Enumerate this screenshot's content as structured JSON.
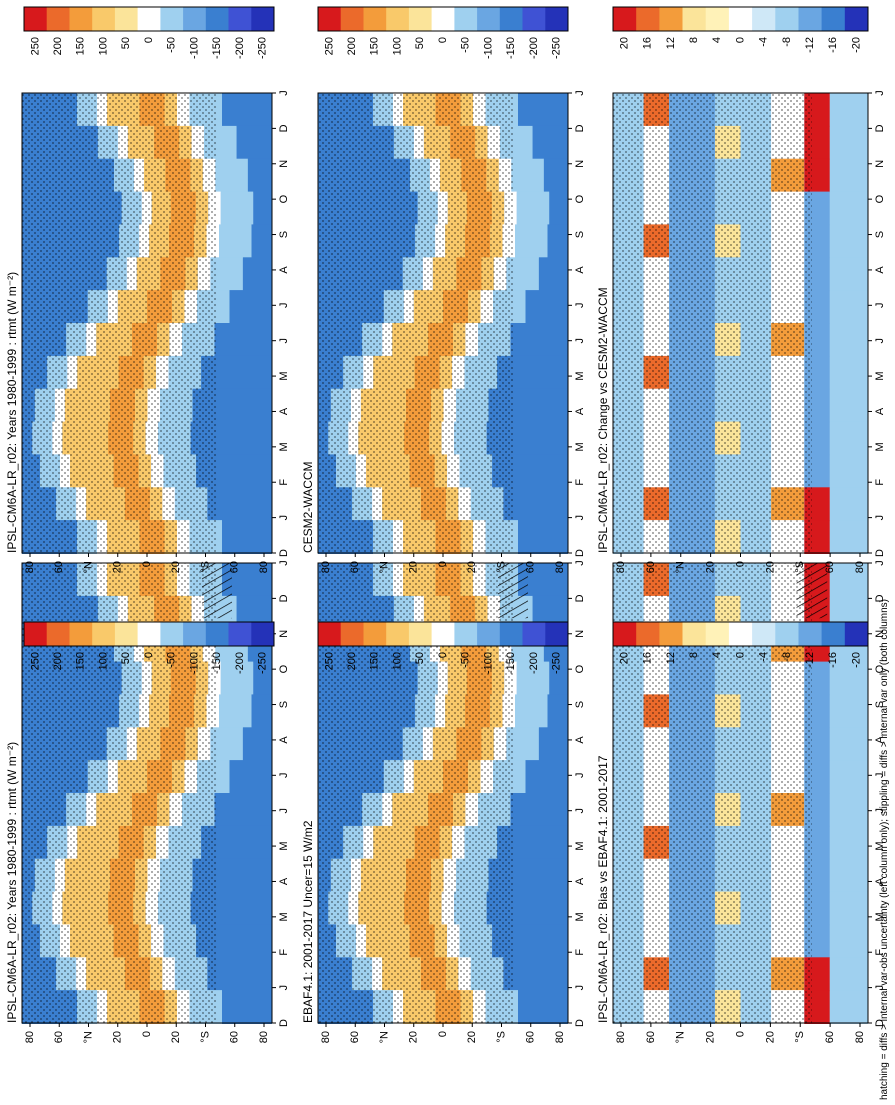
{
  "figure": {
    "footnote": "hatching = diffs > internal var-obs uncertainty (left column only); stippling = diffs > internal var only (both columns)",
    "month_ticks": [
      "D",
      "J",
      "F",
      "M",
      "A",
      "M",
      "J",
      "J",
      "A",
      "S",
      "O",
      "N",
      "D",
      "J"
    ],
    "lat_ticks": [
      "80",
      "60",
      "°N",
      "20",
      "0",
      "20",
      "°S",
      "60",
      "80"
    ]
  },
  "palette": {
    "red": "#d7191c",
    "orange": "#f39c3b",
    "yellow": "#fbe49a",
    "white": "#ffffff",
    "lightblue": "#9fd0ef",
    "blue": "#3a7fd0",
    "darkblue": "#2432b8"
  },
  "chart_data": [
    {
      "type": "heatmap",
      "panel": "left-top",
      "title": "IPSL-CM6A-LR_r02: Years 1980-1999 : rtmt (W m⁻²)",
      "colorbar": [
        "250",
        "200",
        "150",
        "100",
        "50",
        "0",
        "-50",
        "-100",
        "-150",
        "-200",
        "-250"
      ],
      "pattern": "rtmt_climatology",
      "hatching": true,
      "stippling": true
    },
    {
      "type": "heatmap",
      "panel": "right-top",
      "title": "IPSL-CM6A-LR_r02: Years 1980-1999 : rtmt (W m⁻²)",
      "colorbar": [
        "250",
        "200",
        "150",
        "100",
        "50",
        "0",
        "-50",
        "-100",
        "-150",
        "-200",
        "-250"
      ],
      "pattern": "rtmt_climatology",
      "hatching": false,
      "stippling": true
    },
    {
      "type": "heatmap",
      "panel": "left-middle",
      "title": "EBAF4.1: 2001-2017 Uncer=15 W/m2",
      "colorbar": [
        "250",
        "200",
        "150",
        "100",
        "50",
        "0",
        "-50",
        "-100",
        "-150",
        "-200",
        "-250"
      ],
      "pattern": "rtmt_climatology",
      "hatching": true,
      "stippling": true
    },
    {
      "type": "heatmap",
      "panel": "right-middle",
      "title": "CESM2-WACCM",
      "colorbar": [
        "250",
        "200",
        "150",
        "100",
        "50",
        "0",
        "-50",
        "-100",
        "-150",
        "-200",
        "-250"
      ],
      "pattern": "rtmt_climatology",
      "hatching": false,
      "stippling": true
    },
    {
      "type": "heatmap",
      "panel": "left-bottom",
      "title": "IPSL-CM6A-LR_r02: Bias vs EBAF4.1: 2001-2017",
      "colorbar": [
        "20",
        "16",
        "12",
        "8",
        "4",
        "0",
        "-4",
        "-8",
        "-12",
        "-16",
        "-20"
      ],
      "pattern": "bias",
      "hatching": true,
      "stippling": true
    },
    {
      "type": "heatmap",
      "panel": "right-bottom",
      "title": "IPSL-CM6A-LR_r02: Change vs CESM2-WACCM",
      "colorbar": [
        "20",
        "16",
        "12",
        "8",
        "4",
        "0",
        "-4",
        "-8",
        "-12",
        "-16",
        "-20"
      ],
      "pattern": "change",
      "hatching": false,
      "stippling": true
    }
  ]
}
